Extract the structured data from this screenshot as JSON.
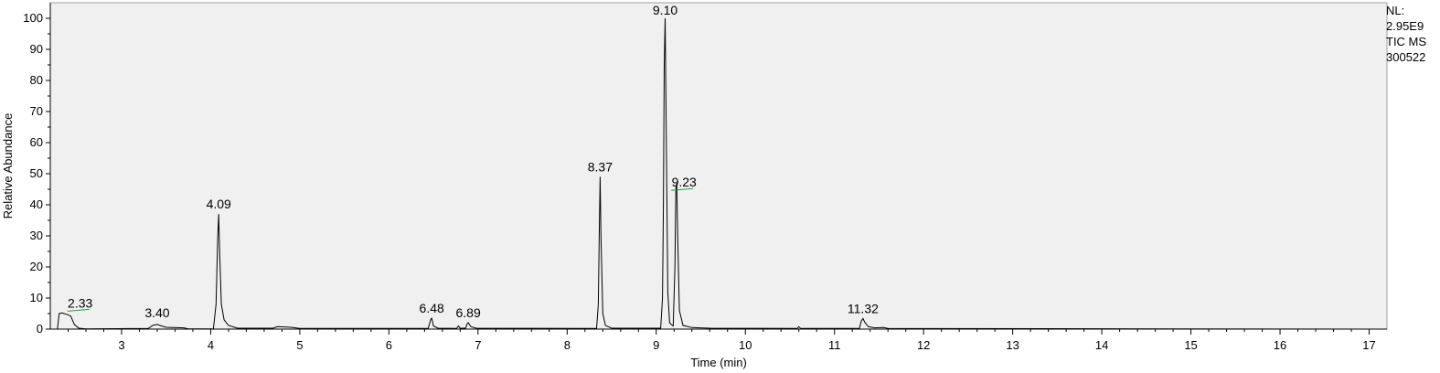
{
  "chart_data": {
    "type": "line",
    "xlabel": "Time (min)",
    "ylabel": "Relative Abundance",
    "xlim": [
      2.2,
      17.2
    ],
    "ylim": [
      0,
      100
    ],
    "x_ticks": [
      3,
      4,
      5,
      6,
      7,
      8,
      9,
      10,
      11,
      12,
      13,
      14,
      15,
      16,
      17
    ],
    "y_ticks": [
      0,
      10,
      20,
      30,
      40,
      50,
      60,
      70,
      80,
      90,
      100
    ],
    "grid": false,
    "colors": {
      "trace": "#000000",
      "plot_bg": "#f0f0f0",
      "integration_marker": "#2a9d3a"
    },
    "series": [
      {
        "points": [
          [
            2.28,
            0
          ],
          [
            2.3,
            5
          ],
          [
            2.33,
            5.2
          ],
          [
            2.38,
            4.8
          ],
          [
            2.43,
            4.2
          ],
          [
            2.47,
            1.5
          ],
          [
            2.52,
            0.3
          ],
          [
            2.6,
            0.1
          ],
          [
            3.3,
            0.2
          ],
          [
            3.35,
            1.2
          ],
          [
            3.4,
            1.5
          ],
          [
            3.45,
            1.0
          ],
          [
            3.5,
            0.6
          ],
          [
            3.7,
            0.4
          ],
          [
            3.75,
            0.1
          ],
          [
            4.03,
            0.1
          ],
          [
            4.06,
            8
          ],
          [
            4.08,
            30
          ],
          [
            4.09,
            37
          ],
          [
            4.1,
            25
          ],
          [
            4.12,
            8
          ],
          [
            4.15,
            3
          ],
          [
            4.2,
            1.2
          ],
          [
            4.3,
            0.3
          ],
          [
            4.7,
            0.3
          ],
          [
            4.75,
            0.8
          ],
          [
            4.9,
            0.6
          ],
          [
            5.0,
            0.2
          ],
          [
            6.44,
            0.2
          ],
          [
            6.47,
            3.2
          ],
          [
            6.48,
            3.5
          ],
          [
            6.5,
            1.0
          ],
          [
            6.55,
            0.3
          ],
          [
            6.76,
            0.2
          ],
          [
            6.78,
            1.0
          ],
          [
            6.8,
            0.3
          ],
          [
            6.86,
            0.3
          ],
          [
            6.88,
            1.8
          ],
          [
            6.89,
            2.1
          ],
          [
            6.92,
            0.8
          ],
          [
            6.98,
            0.3
          ],
          [
            8.33,
            0.2
          ],
          [
            8.35,
            8
          ],
          [
            8.36,
            30
          ],
          [
            8.37,
            49
          ],
          [
            8.38,
            30
          ],
          [
            8.4,
            5
          ],
          [
            8.43,
            1.2
          ],
          [
            8.5,
            0.3
          ],
          [
            9.05,
            0.3
          ],
          [
            9.07,
            10
          ],
          [
            9.08,
            40
          ],
          [
            9.09,
            85
          ],
          [
            9.1,
            100
          ],
          [
            9.11,
            70
          ],
          [
            9.13,
            12
          ],
          [
            9.15,
            2
          ],
          [
            9.19,
            1
          ],
          [
            9.21,
            20
          ],
          [
            9.22,
            45
          ],
          [
            9.23,
            47
          ],
          [
            9.24,
            30
          ],
          [
            9.26,
            6
          ],
          [
            9.3,
            1.2
          ],
          [
            9.4,
            0.5
          ],
          [
            9.6,
            0.3
          ],
          [
            10.58,
            0.2
          ],
          [
            10.6,
            0.8
          ],
          [
            10.62,
            0.2
          ],
          [
            11.28,
            0.2
          ],
          [
            11.3,
            2.5
          ],
          [
            11.32,
            3.4
          ],
          [
            11.34,
            2.2
          ],
          [
            11.38,
            0.8
          ],
          [
            11.45,
            0.4
          ],
          [
            11.55,
            0.5
          ],
          [
            11.6,
            0.2
          ],
          [
            17.1,
            0
          ]
        ]
      }
    ],
    "peak_labels": [
      {
        "x": 2.33,
        "y": 5.2,
        "text": "2.33"
      },
      {
        "x": 3.4,
        "y": 1.5,
        "text": "3.40"
      },
      {
        "x": 4.09,
        "y": 37,
        "text": "4.09"
      },
      {
        "x": 6.48,
        "y": 3.5,
        "text": "6.48"
      },
      {
        "x": 6.89,
        "y": 2.1,
        "text": "6.89"
      },
      {
        "x": 8.37,
        "y": 49,
        "text": "8.37"
      },
      {
        "x": 9.1,
        "y": 100,
        "text": "9.10"
      },
      {
        "x": 9.23,
        "y": 47,
        "text": "9.23"
      },
      {
        "x": 11.32,
        "y": 3.4,
        "text": "11.32"
      }
    ],
    "annotations": [
      "NL:",
      "2.95E9",
      "TIC  MS",
      "300522"
    ]
  }
}
